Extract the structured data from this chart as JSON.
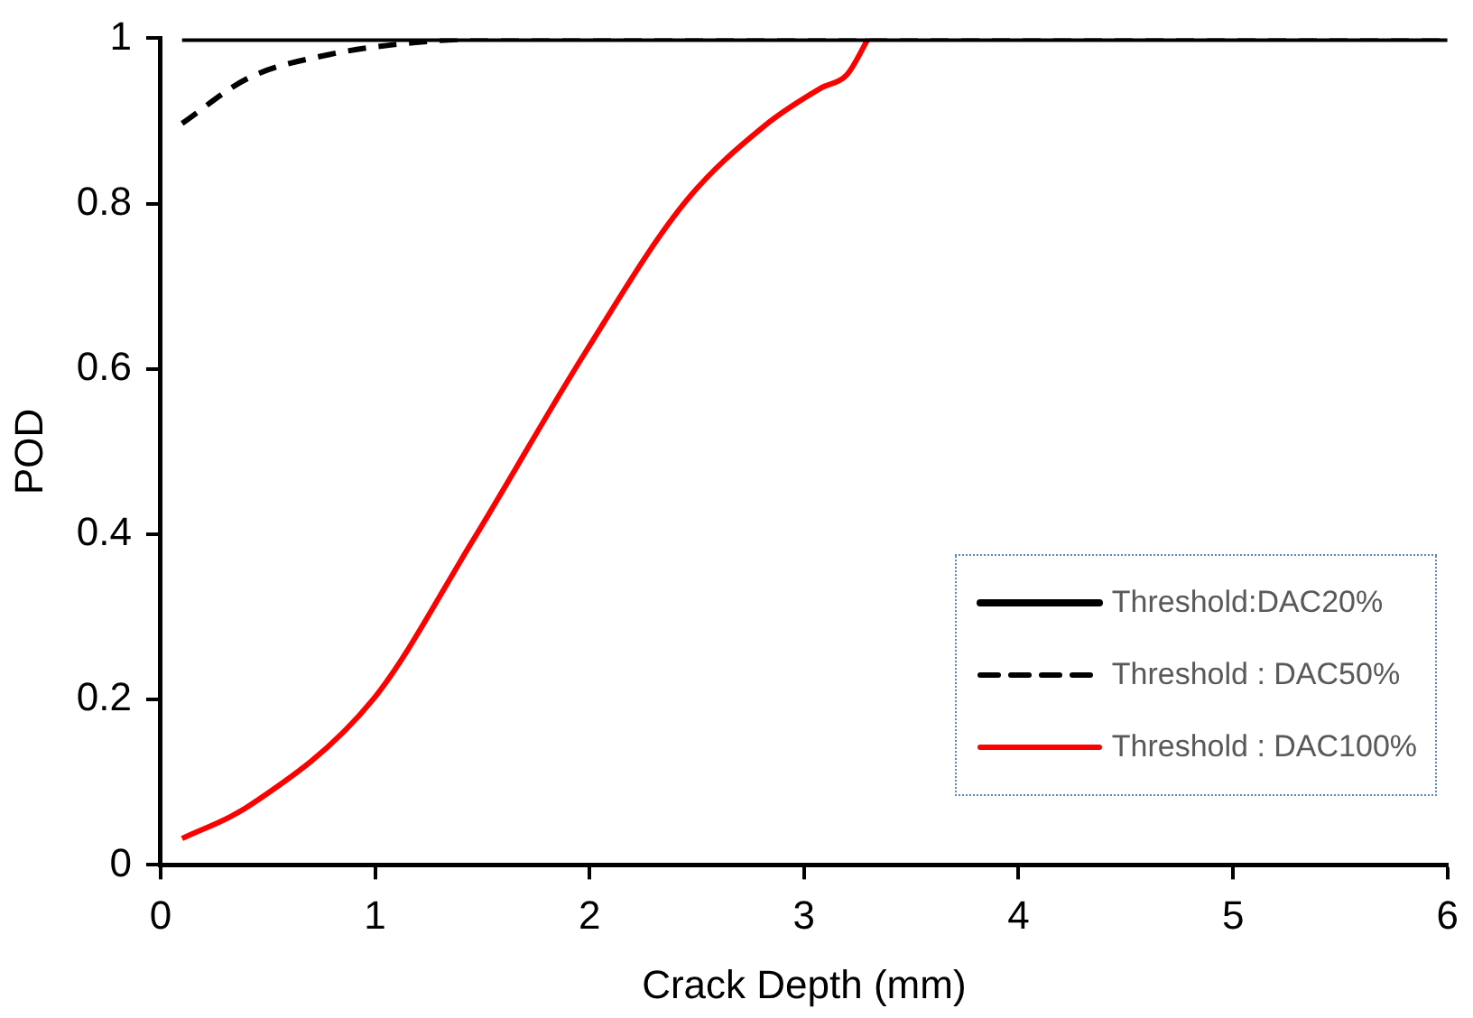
{
  "chart_data": {
    "type": "line",
    "xlabel": "Crack Depth (mm)",
    "ylabel": "POD",
    "xlim": [
      0,
      6
    ],
    "xticks": [
      0,
      1,
      2,
      3,
      4,
      5,
      6
    ],
    "ylim": [
      0,
      1
    ],
    "yticks": [
      0,
      {
        "value": 0.2,
        "label": "0.2"
      },
      {
        "value": 0.4,
        "label": "0.4"
      },
      {
        "value": 0.6,
        "label": "0.6"
      },
      {
        "value": 0.8,
        "label": "0.8"
      },
      1
    ],
    "grid": false,
    "legend": "bottom right",
    "marker": "none",
    "series": [
      {
        "name": "Threshold:DAC20%",
        "color": "#000000",
        "line_style": "solid",
        "x": [
          0.1,
          6
        ],
        "values": [
          1,
          1
        ]
      },
      {
        "name": "Threshold : DAC50%",
        "color": "#000000",
        "line_style": "dashed",
        "x": [
          0.1,
          0.41,
          0.78,
          1.19,
          1.6,
          6
        ],
        "values": [
          0.897,
          0.952,
          0.98,
          0.995,
          1,
          1
        ]
      },
      {
        "name": "Threshold : DAC100%",
        "color": "#ff0000",
        "line_style": "solid",
        "x": [
          0.1,
          0.41,
          0.99,
          1.45,
          1.98,
          2.44,
          2.82,
          3.08,
          3.2,
          3.3
        ],
        "values": [
          0.032,
          0.071,
          0.2,
          0.39,
          0.62,
          0.8,
          0.895,
          0.94,
          0.956,
          1
        ]
      }
    ]
  }
}
